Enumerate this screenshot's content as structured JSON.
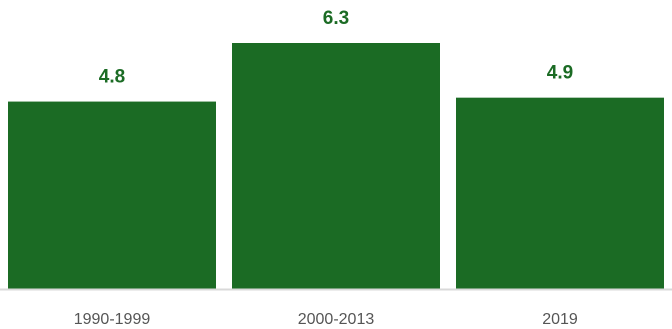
{
  "chart_data": {
    "type": "bar",
    "categories": [
      "1990-1999",
      "2000-2013",
      "2019"
    ],
    "values": [
      4.8,
      6.3,
      4.9
    ],
    "data_labels": [
      "4.8",
      "6.3",
      "4.9"
    ],
    "title": "",
    "xlabel": "",
    "ylabel": "",
    "ylim": [
      0,
      6.3
    ],
    "grid": false,
    "legend": "none",
    "bar_color": "#1b6b24",
    "label_color": "#1b6b24",
    "axis_color": "#d9d9d9"
  }
}
